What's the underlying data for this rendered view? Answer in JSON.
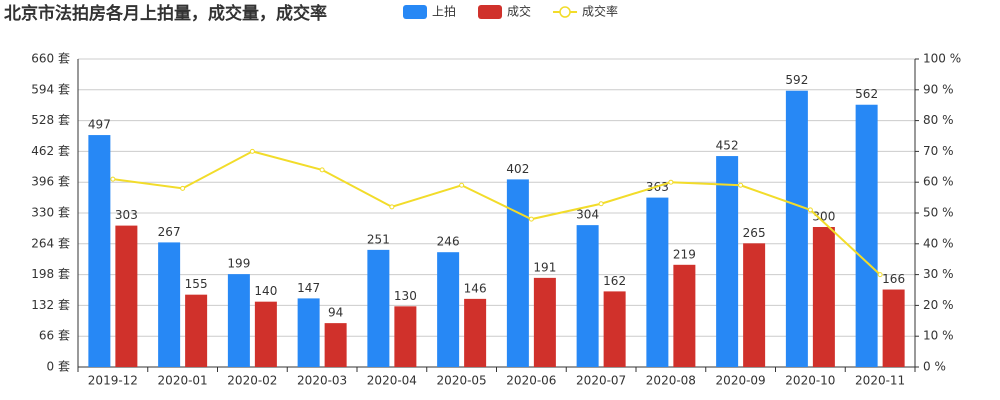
{
  "chart_data": {
    "type": "bar",
    "title": "北京市法拍房各月上拍量，成交量，成交率",
    "categories": [
      "2019-12",
      "2020-01",
      "2020-02",
      "2020-03",
      "2020-04",
      "2020-05",
      "2020-06",
      "2020-07",
      "2020-08",
      "2020-09",
      "2020-10",
      "2020-11"
    ],
    "series": [
      {
        "name": "上拍",
        "color": "#2788f5",
        "values": [
          497,
          267,
          199,
          147,
          251,
          246,
          402,
          304,
          363,
          452,
          592,
          562
        ]
      },
      {
        "name": "成交",
        "color": "#d0312b",
        "values": [
          303,
          155,
          140,
          94,
          130,
          146,
          191,
          162,
          219,
          265,
          300,
          166
        ]
      },
      {
        "name": "成交率",
        "color": "#f2dc2a",
        "type": "line",
        "axis": "y2",
        "values": [
          61,
          58,
          70,
          64,
          52,
          59,
          48,
          53,
          60,
          59,
          51,
          30
        ]
      }
    ],
    "ylim": [
      0,
      660
    ],
    "yticks": [
      {
        "value": 0,
        "label": "0 套"
      },
      {
        "value": 66,
        "label": "66 套"
      },
      {
        "value": 132,
        "label": "132 套"
      },
      {
        "value": 198,
        "label": "198 套"
      },
      {
        "value": 264,
        "label": "264 套"
      },
      {
        "value": 330,
        "label": "330 套"
      },
      {
        "value": 396,
        "label": "396 套"
      },
      {
        "value": 462,
        "label": "462 套"
      },
      {
        "value": 528,
        "label": "528 套"
      },
      {
        "value": 594,
        "label": "594 套"
      },
      {
        "value": 660,
        "label": "660 套"
      }
    ],
    "y2lim": [
      0,
      100
    ],
    "y2ticks": [
      {
        "value": 0,
        "label": "0 %"
      },
      {
        "value": 10,
        "label": "10 %"
      },
      {
        "value": 20,
        "label": "20 %"
      },
      {
        "value": 30,
        "label": "30 %"
      },
      {
        "value": 40,
        "label": "40 %"
      },
      {
        "value": 50,
        "label": "50 %"
      },
      {
        "value": 60,
        "label": "60 %"
      },
      {
        "value": 70,
        "label": "70 %"
      },
      {
        "value": 80,
        "label": "80 %"
      },
      {
        "value": 90,
        "label": "90 %"
      },
      {
        "value": 100,
        "label": "100 %"
      }
    ],
    "grid": true
  }
}
